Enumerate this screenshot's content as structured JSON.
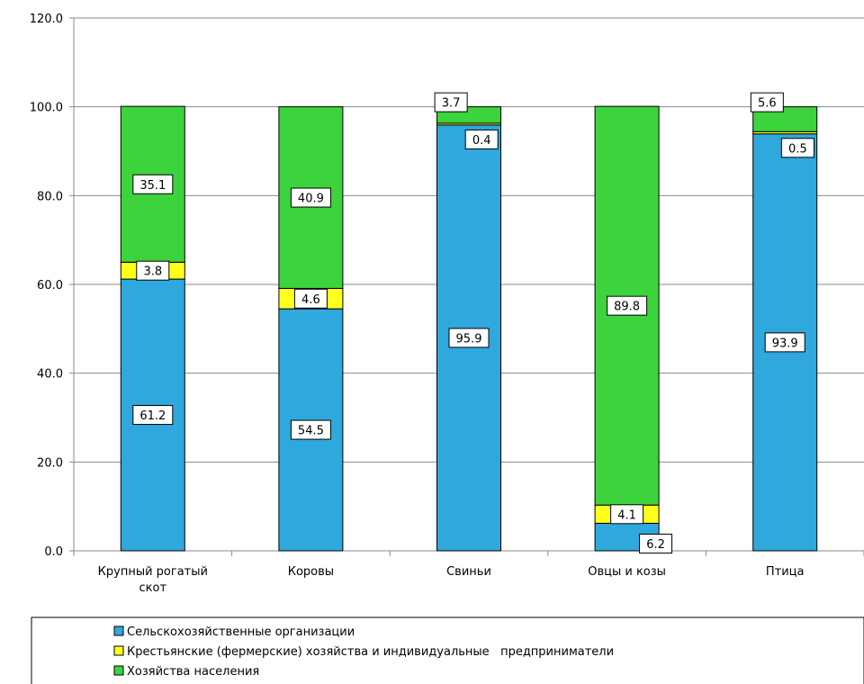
{
  "chart_data": {
    "type": "bar",
    "stacked": true,
    "categories": [
      [
        "Крупный рогатый",
        "скот"
      ],
      [
        "Коровы"
      ],
      [
        "Свиньи"
      ],
      [
        "Овцы и козы"
      ],
      [
        "Птица"
      ]
    ],
    "series": [
      {
        "name": "Сельскохозяйственные организации",
        "values": [
          61.2,
          54.5,
          95.9,
          6.2,
          93.9
        ],
        "color": "#2FA8DE"
      },
      {
        "name": "Крестьянские (фермерские) хозяйства и индивидуальные   предприниматели",
        "values": [
          3.8,
          4.6,
          0.4,
          4.1,
          0.5
        ],
        "color": "#FFFF1A"
      },
      {
        "name": "Хозяйства населения",
        "values": [
          35.1,
          40.9,
          3.7,
          89.8,
          5.6
        ],
        "color": "#3CD33C"
      }
    ],
    "ylim": [
      0,
      120
    ],
    "yticks": [
      "0.0",
      "20.0",
      "40.0",
      "60.0",
      "80.0",
      "100.0",
      "120.0"
    ],
    "grid": true,
    "legend_position": "bottom",
    "title": "",
    "xlabel": "",
    "ylabel": ""
  }
}
